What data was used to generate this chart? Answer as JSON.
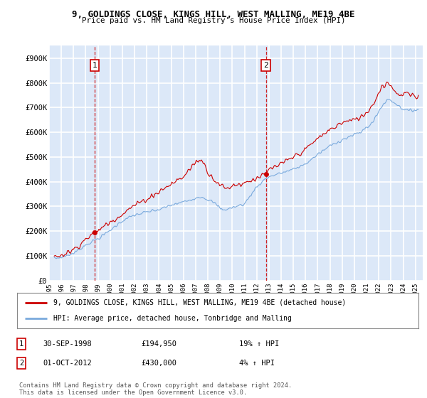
{
  "title1": "9, GOLDINGS CLOSE, KINGS HILL, WEST MALLING, ME19 4BE",
  "title2": "Price paid vs. HM Land Registry's House Price Index (HPI)",
  "ylabel_ticks": [
    "£0",
    "£100K",
    "£200K",
    "£300K",
    "£400K",
    "£500K",
    "£600K",
    "£700K",
    "£800K",
    "£900K"
  ],
  "ytick_vals": [
    0,
    100000,
    200000,
    300000,
    400000,
    500000,
    600000,
    700000,
    800000,
    900000
  ],
  "ylim": [
    0,
    950000
  ],
  "xlim_start": 1995.4,
  "xlim_end": 2025.6,
  "purchase1_date": 1998.75,
  "purchase1_price": 194950,
  "purchase2_date": 2012.75,
  "purchase2_price": 430000,
  "line_color_property": "#cc0000",
  "line_color_hpi": "#7aaadd",
  "dashed_line_color": "#cc0000",
  "background_color": "#dce8f8",
  "grid_color": "#ffffff",
  "legend_label1": "9, GOLDINGS CLOSE, KINGS HILL, WEST MALLING, ME19 4BE (detached house)",
  "legend_label2": "HPI: Average price, detached house, Tonbridge and Malling",
  "table_row1": [
    "1",
    "30-SEP-1998",
    "£194,950",
    "19% ↑ HPI"
  ],
  "table_row2": [
    "2",
    "01-OCT-2012",
    "£430,000",
    "4% ↑ HPI"
  ],
  "footer": "Contains HM Land Registry data © Crown copyright and database right 2024.\nThis data is licensed under the Open Government Licence v3.0.",
  "xtick_years": [
    1995,
    1996,
    1997,
    1998,
    1999,
    2000,
    2001,
    2002,
    2003,
    2004,
    2005,
    2006,
    2007,
    2008,
    2009,
    2010,
    2011,
    2012,
    2013,
    2014,
    2015,
    2016,
    2017,
    2018,
    2019,
    2020,
    2021,
    2022,
    2023,
    2024,
    2025
  ]
}
